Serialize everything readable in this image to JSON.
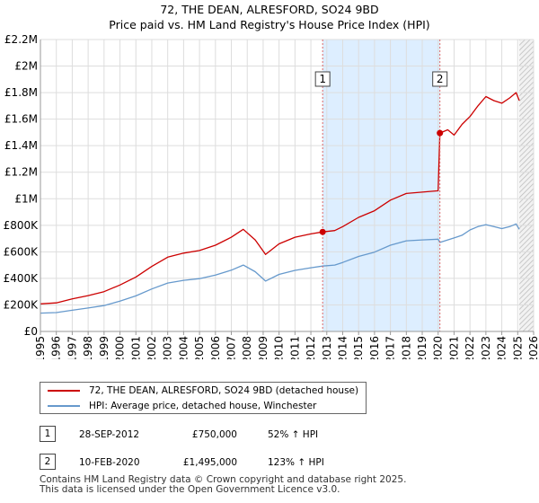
{
  "chart_data": {
    "type": "line",
    "title": "72, THE DEAN, ALRESFORD, SO24 9BD",
    "subtitle": "Price paid vs. HM Land Registry's House Price Index (HPI)",
    "xlim": [
      1995,
      2026
    ],
    "ylim": [
      0,
      2200000
    ],
    "y_ticks": [
      {
        "value": 0,
        "label": "£0"
      },
      {
        "value": 200000,
        "label": "£200K"
      },
      {
        "value": 400000,
        "label": "£400K"
      },
      {
        "value": 600000,
        "label": "£600K"
      },
      {
        "value": 800000,
        "label": "£800K"
      },
      {
        "value": 1000000,
        "label": "£1M"
      },
      {
        "value": 1200000,
        "label": "£1.2M"
      },
      {
        "value": 1400000,
        "label": "£1.4M"
      },
      {
        "value": 1600000,
        "label": "£1.6M"
      },
      {
        "value": 1800000,
        "label": "£1.8M"
      },
      {
        "value": 2000000,
        "label": "£2M"
      },
      {
        "value": 2200000,
        "label": "£2.2M"
      }
    ],
    "x_ticks": [
      "1995",
      "1996",
      "1997",
      "1998",
      "1999",
      "2000",
      "2001",
      "2002",
      "2003",
      "2004",
      "2005",
      "2006",
      "2007",
      "2008",
      "2009",
      "2010",
      "2011",
      "2012",
      "2013",
      "2014",
      "2015",
      "2016",
      "2017",
      "2018",
      "2019",
      "2020",
      "2021",
      "2022",
      "2023",
      "2024",
      "2025",
      "2026"
    ],
    "grid": true,
    "colors": {
      "property": "#cc0000",
      "hpi": "#6699cc",
      "highlight": "#ddeeff",
      "vline": "#dd6666"
    },
    "series": [
      {
        "name": "72, THE DEAN, ALRESFORD, SO24 9BD (detached house)",
        "color": "#cc0000",
        "points": [
          [
            1995.0,
            208000
          ],
          [
            1996.0,
            215000
          ],
          [
            1997.0,
            245000
          ],
          [
            1998.0,
            270000
          ],
          [
            1999.0,
            300000
          ],
          [
            2000.0,
            350000
          ],
          [
            2001.0,
            410000
          ],
          [
            2002.0,
            490000
          ],
          [
            2003.0,
            560000
          ],
          [
            2004.0,
            590000
          ],
          [
            2005.0,
            610000
          ],
          [
            2006.0,
            650000
          ],
          [
            2007.0,
            710000
          ],
          [
            2007.75,
            770000
          ],
          [
            2008.5,
            690000
          ],
          [
            2009.15,
            580000
          ],
          [
            2010.0,
            660000
          ],
          [
            2011.0,
            710000
          ],
          [
            2012.0,
            735000
          ],
          [
            2012.74,
            750000
          ],
          [
            2013.5,
            760000
          ],
          [
            2014.0,
            790000
          ],
          [
            2015.0,
            860000
          ],
          [
            2016.0,
            910000
          ],
          [
            2017.0,
            990000
          ],
          [
            2018.0,
            1040000
          ],
          [
            2019.0,
            1050000
          ],
          [
            2020.0,
            1060000
          ],
          [
            2020.11,
            1495000
          ],
          [
            2020.6,
            1520000
          ],
          [
            2021.0,
            1480000
          ],
          [
            2021.5,
            1560000
          ],
          [
            2022.0,
            1620000
          ],
          [
            2022.5,
            1700000
          ],
          [
            2023.0,
            1770000
          ],
          [
            2023.5,
            1740000
          ],
          [
            2024.0,
            1720000
          ],
          [
            2024.5,
            1760000
          ],
          [
            2024.9,
            1800000
          ],
          [
            2025.1,
            1740000
          ]
        ]
      },
      {
        "name": "HPI: Average price, detached house, Winchester",
        "color": "#6699cc",
        "points": [
          [
            1995.0,
            138000
          ],
          [
            1996.0,
            142000
          ],
          [
            1997.0,
            160000
          ],
          [
            1998.0,
            177000
          ],
          [
            1999.0,
            195000
          ],
          [
            2000.0,
            228000
          ],
          [
            2001.0,
            268000
          ],
          [
            2002.0,
            320000
          ],
          [
            2003.0,
            365000
          ],
          [
            2004.0,
            385000
          ],
          [
            2005.0,
            398000
          ],
          [
            2006.0,
            425000
          ],
          [
            2007.0,
            462000
          ],
          [
            2007.75,
            500000
          ],
          [
            2008.5,
            450000
          ],
          [
            2009.15,
            380000
          ],
          [
            2010.0,
            430000
          ],
          [
            2011.0,
            460000
          ],
          [
            2012.0,
            480000
          ],
          [
            2012.74,
            493000
          ],
          [
            2013.5,
            500000
          ],
          [
            2014.0,
            520000
          ],
          [
            2015.0,
            565000
          ],
          [
            2016.0,
            598000
          ],
          [
            2017.0,
            650000
          ],
          [
            2018.0,
            683000
          ],
          [
            2019.0,
            690000
          ],
          [
            2020.0,
            695000
          ],
          [
            2020.11,
            671000
          ],
          [
            2021.0,
            705000
          ],
          [
            2021.5,
            725000
          ],
          [
            2022.0,
            765000
          ],
          [
            2022.5,
            790000
          ],
          [
            2023.0,
            805000
          ],
          [
            2023.5,
            790000
          ],
          [
            2024.0,
            775000
          ],
          [
            2024.5,
            790000
          ],
          [
            2024.9,
            810000
          ],
          [
            2025.1,
            770000
          ]
        ]
      }
    ],
    "sales": [
      {
        "id": "1",
        "date": "28-SEP-2012",
        "x": 2012.74,
        "price": 750000,
        "price_label": "£750,000",
        "hpi_text": "52% ↑ HPI"
      },
      {
        "id": "2",
        "date": "10-FEB-2020",
        "x": 2020.11,
        "price": 1495000,
        "price_label": "£1,495,000",
        "hpi_text": "123% ↑ HPI"
      }
    ],
    "highlight_range": [
      2012.74,
      2020.11
    ],
    "forecast_start": 2025.1,
    "legend_position": "below"
  },
  "footer": {
    "line1": "Contains HM Land Registry data © Crown copyright and database right 2025.",
    "line2": "This data is licensed under the Open Government Licence v3.0."
  }
}
